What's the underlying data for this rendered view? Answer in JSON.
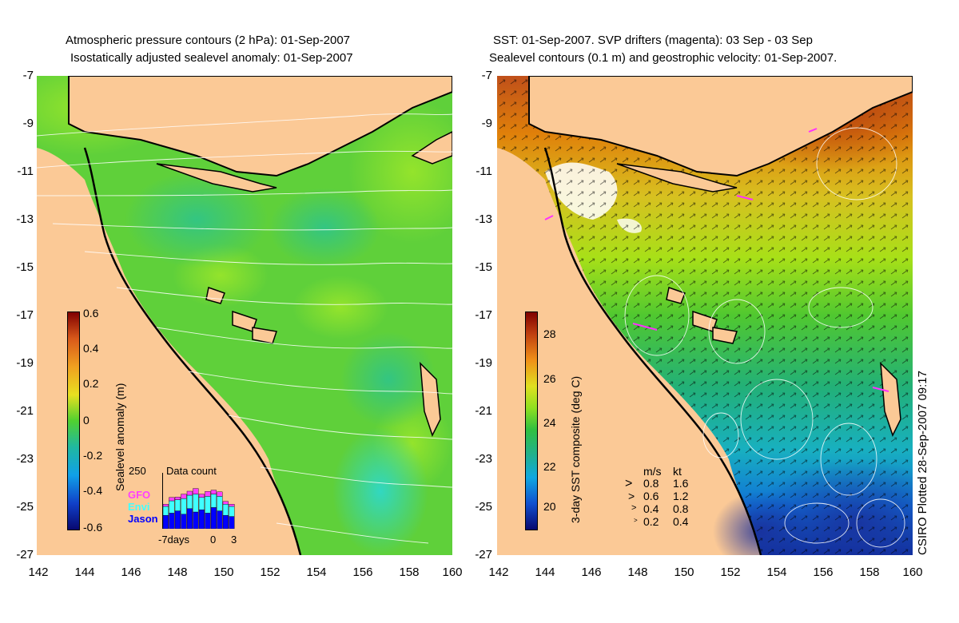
{
  "left_title_line1": "Atmospheric pressure contours (2 hPa): 01-Sep-2007",
  "left_title_line2": "Isostatically adjusted sealevel anomaly: 01-Sep-2007",
  "right_title_line1": "SST: 01-Sep-2007. SVP drifters (magenta): 03 Sep - 03 Sep",
  "right_title_line2": "Sealevel contours (0.1 m) and geostrophic velocity: 01-Sep-2007.",
  "y_ticks": [
    "-7",
    "-9",
    "-11",
    "-13",
    "-15",
    "-17",
    "-19",
    "-21",
    "-23",
    "-25",
    "-27"
  ],
  "x_ticks": [
    "142",
    "144",
    "146",
    "148",
    "150",
    "152",
    "154",
    "156",
    "158",
    "160"
  ],
  "sla_colorbar": {
    "label": "Sealevel anomaly (m)",
    "ticks": [
      "0.6",
      "0.4",
      "0.2",
      "0",
      "-0.2",
      "-0.4",
      "-0.6"
    ]
  },
  "sst_colorbar": {
    "label": "3-day SST composite (deg C)",
    "ticks": [
      "28",
      "26",
      "24",
      "22",
      "20"
    ]
  },
  "data_count": {
    "title": "Data count",
    "max_label": "250",
    "missions": [
      "GFO",
      "Envi",
      "Jason"
    ],
    "mission_colors": [
      "#ff40ff",
      "#40ffff",
      "#0000ff"
    ],
    "x_labels": [
      "-7days",
      "0",
      "3"
    ],
    "bars_jason": [
      60,
      70,
      80,
      65,
      90,
      75,
      85,
      70,
      95,
      80,
      60,
      55
    ],
    "bars_envi": [
      40,
      55,
      50,
      70,
      60,
      80,
      55,
      75,
      60,
      65,
      50,
      45
    ],
    "bars_gfo": [
      10,
      15,
      12,
      20,
      18,
      25,
      15,
      22,
      18,
      20,
      12,
      10
    ]
  },
  "velocity_legend": {
    "header_ms": "m/s",
    "header_kt": "kt",
    "rows": [
      {
        "ms": "0.8",
        "kt": "1.6"
      },
      {
        "ms": "0.6",
        "kt": "1.2"
      },
      {
        "ms": "0.4",
        "kt": "0.8"
      },
      {
        "ms": "0.2",
        "kt": "0.4"
      }
    ]
  },
  "credit": "CSIRO Plotted 28-Sep-2007 09:17",
  "colors": {
    "land": "#fbc996",
    "sla_base": "#5fd03a",
    "sst_warm": "#c85a10",
    "sst_cool": "#0a40c0"
  }
}
